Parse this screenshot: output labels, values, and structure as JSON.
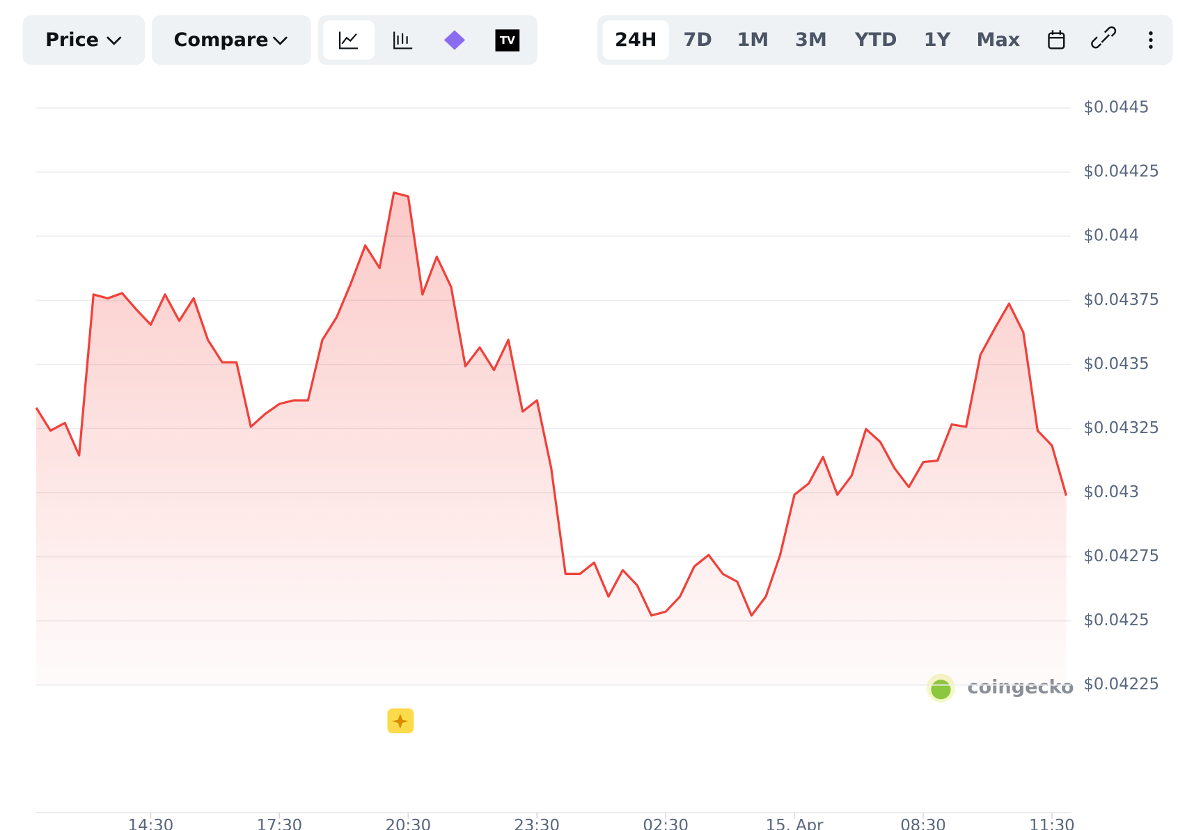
{
  "controls": {
    "price": "Price",
    "compare": "Compare",
    "ranges": [
      "24H",
      "7D",
      "1M",
      "3M",
      "YTD",
      "1Y",
      "Max"
    ]
  },
  "watermark": "coingecko",
  "chart_data": {
    "type": "line",
    "x": [
      "11:50",
      "12:10",
      "12:30",
      "12:50",
      "13:10",
      "13:30",
      "13:50",
      "14:10",
      "14:30",
      "14:50",
      "15:10",
      "15:30",
      "15:50",
      "16:10",
      "16:30",
      "16:50",
      "17:10",
      "17:30",
      "17:50",
      "18:10",
      "18:30",
      "18:50",
      "19:10",
      "19:30",
      "19:50",
      "20:10",
      "20:30",
      "20:50",
      "21:10",
      "21:30",
      "21:50",
      "22:10",
      "22:30",
      "22:50",
      "23:10",
      "23:30",
      "23:50",
      "00:10",
      "00:30",
      "00:50",
      "01:10",
      "01:30",
      "01:50",
      "02:10",
      "02:30",
      "02:50",
      "03:10",
      "03:30",
      "03:50",
      "04:10",
      "04:30",
      "04:50",
      "05:10",
      "05:30",
      "05:50",
      "06:10",
      "06:30",
      "06:50",
      "07:10",
      "07:30",
      "07:50",
      "08:10",
      "08:30",
      "08:50",
      "09:10",
      "09:30",
      "09:50",
      "10:10",
      "10:30",
      "10:50",
      "11:10",
      "11:30",
      "11:50"
    ],
    "series": [
      {
        "name": "Price",
        "color": "#f0413a",
        "values": [
          0.043331,
          0.043242,
          0.043272,
          0.043145,
          0.043773,
          0.043758,
          0.043778,
          0.043714,
          0.043655,
          0.043773,
          0.04367,
          0.043758,
          0.043596,
          0.043508,
          0.043508,
          0.043257,
          0.043307,
          0.043346,
          0.04336,
          0.04336,
          0.043596,
          0.043684,
          0.043817,
          0.043964,
          0.043876,
          0.04417,
          0.044155,
          0.043773,
          0.04392,
          0.043802,
          0.043493,
          0.043566,
          0.043478,
          0.043596,
          0.043316,
          0.04336,
          0.043095,
          0.042683,
          0.042683,
          0.042727,
          0.042595,
          0.042698,
          0.042639,
          0.042521,
          0.042536,
          0.042595,
          0.042712,
          0.042757,
          0.042683,
          0.042653,
          0.042521,
          0.042595,
          0.042757,
          0.042992,
          0.043036,
          0.043139,
          0.042992,
          0.043066,
          0.043248,
          0.043198,
          0.043095,
          0.043022,
          0.043119,
          0.043125,
          0.043266,
          0.043257,
          0.043537,
          0.04364,
          0.043737,
          0.043625,
          0.043242,
          0.043184,
          0.042989
        ]
      }
    ],
    "xticks": [
      "14:30",
      "17:30",
      "20:30",
      "23:30",
      "02:30",
      {
        "value": "05:30",
        "label": "15. Apr"
      },
      "08:30",
      "11:30"
    ],
    "ylim": [
      0.04225,
      0.0445
    ],
    "yticks": [
      {
        "value": 0.04225,
        "label": "$0.04225"
      },
      {
        "value": 0.0425,
        "label": "$0.0425"
      },
      {
        "value": 0.04275,
        "label": "$0.04275"
      },
      {
        "value": 0.043,
        "label": "$0.043"
      },
      {
        "value": 0.04325,
        "label": "$0.04325"
      },
      {
        "value": 0.0435,
        "label": "$0.0435"
      },
      {
        "value": 0.04375,
        "label": "$0.04375"
      },
      {
        "value": 0.044,
        "label": "$0.044"
      },
      {
        "value": 0.04425,
        "label": "$0.04425"
      },
      {
        "value": 0.0445,
        "label": "$0.0445"
      }
    ],
    "grid": true
  }
}
